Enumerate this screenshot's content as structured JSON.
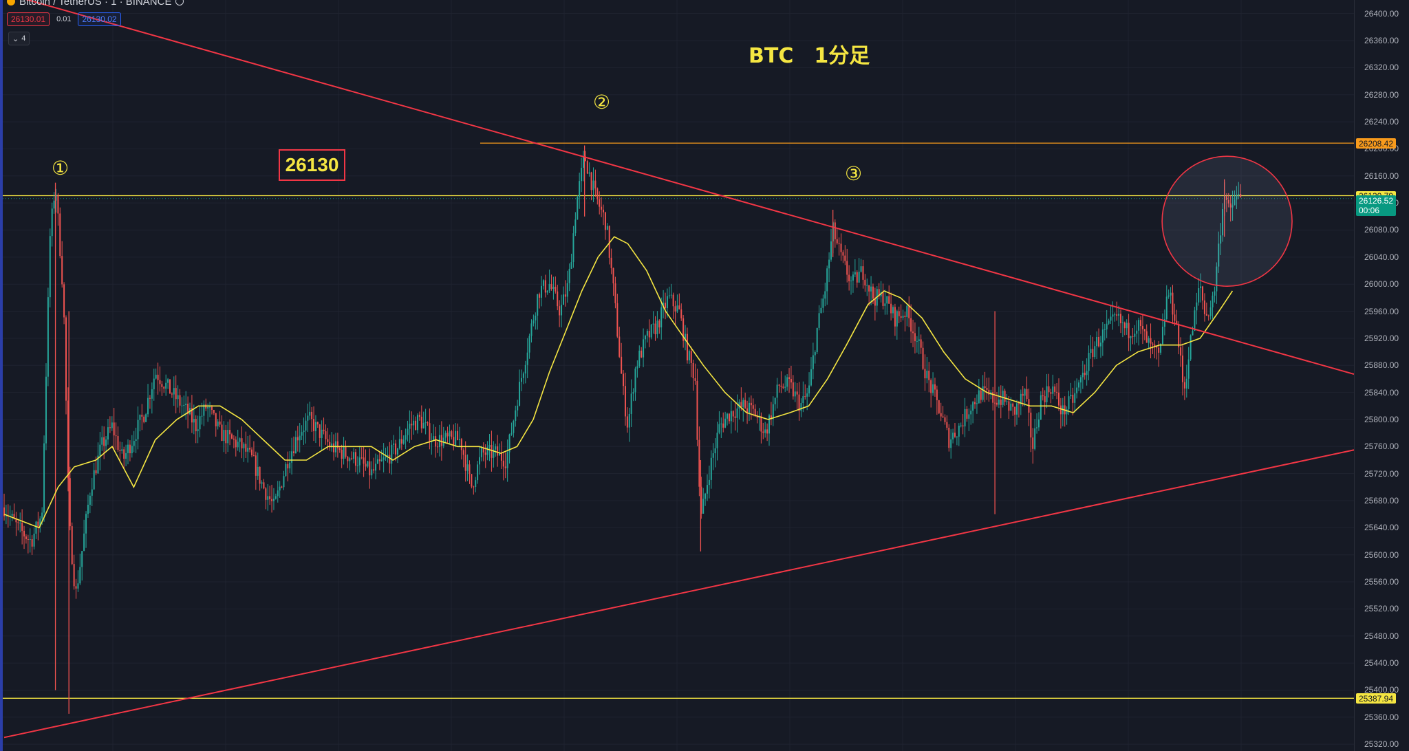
{
  "header": {
    "symbol": "Bitcoin / TetherUS · 1 · BINANCE"
  },
  "quote": {
    "sell": "26130.01",
    "spread": "0.01",
    "buy": "26130.02"
  },
  "indicators": {
    "count": "4"
  },
  "annotations": {
    "title": "BTC　1分足",
    "marker1": "①",
    "marker2": "②",
    "marker3": "③",
    "callout": "26130"
  },
  "colors": {
    "background": "#161a25",
    "up_candle": "#26a69a",
    "down_candle": "#ef5350",
    "trendline": "#f23645",
    "hline_yellow": "#f5e642",
    "hline_orange": "#f79a1c",
    "ma_line": "#f5e642"
  },
  "chart_data": {
    "type": "candlestick",
    "ylim": [
      25310,
      26420
    ],
    "price_axis_ticks": [
      "26400.00",
      "26360.00",
      "26320.00",
      "26280.00",
      "26240.00",
      "26200.00",
      "26160.00",
      "26120.00",
      "26080.00",
      "26040.00",
      "26000.00",
      "25960.00",
      "25920.00",
      "25880.00",
      "25840.00",
      "25800.00",
      "25760.00",
      "25720.00",
      "25680.00",
      "25640.00",
      "25600.00",
      "25560.00",
      "25520.00",
      "25480.00",
      "25440.00",
      "25400.00",
      "25360.00",
      "25320.00"
    ],
    "horizontal_levels": [
      {
        "price": 26208.42,
        "color": "orange",
        "label": "26208.42"
      },
      {
        "price": 26130.79,
        "color": "yellow",
        "label": "26130.79"
      },
      {
        "price": 25387.94,
        "color": "yellow",
        "label": "25387.94"
      }
    ],
    "current_price": {
      "price": 26126.52,
      "label": "26126.52",
      "countdown": "00:06"
    },
    "trendlines": [
      {
        "name": "descending",
        "from": [
          0,
          26430
        ],
        "to": [
          1,
          25867
        ]
      },
      {
        "name": "ascending",
        "from": [
          0,
          25330
        ],
        "to": [
          1,
          25755
        ]
      }
    ],
    "highlight_circle": {
      "center_x": 0.906,
      "center_price": 26093,
      "radius_frac": 0.048
    },
    "price_path": [
      [
        0.0,
        25670
      ],
      [
        0.01,
        25640
      ],
      [
        0.02,
        25620
      ],
      [
        0.028,
        25660
      ],
      [
        0.034,
        26070
      ],
      [
        0.038,
        26150
      ],
      [
        0.044,
        25980
      ],
      [
        0.048,
        25650
      ],
      [
        0.053,
        25540
      ],
      [
        0.058,
        25610
      ],
      [
        0.064,
        25700
      ],
      [
        0.072,
        25760
      ],
      [
        0.08,
        25790
      ],
      [
        0.088,
        25740
      ],
      [
        0.095,
        25770
      ],
      [
        0.104,
        25810
      ],
      [
        0.112,
        25870
      ],
      [
        0.12,
        25850
      ],
      [
        0.128,
        25830
      ],
      [
        0.136,
        25810
      ],
      [
        0.142,
        25790
      ],
      [
        0.15,
        25820
      ],
      [
        0.16,
        25780
      ],
      [
        0.168,
        25770
      ],
      [
        0.176,
        25760
      ],
      [
        0.184,
        25740
      ],
      [
        0.192,
        25700
      ],
      [
        0.2,
        25670
      ],
      [
        0.21,
        25740
      ],
      [
        0.218,
        25780
      ],
      [
        0.226,
        25800
      ],
      [
        0.234,
        25780
      ],
      [
        0.242,
        25760
      ],
      [
        0.252,
        25750
      ],
      [
        0.262,
        25740
      ],
      [
        0.272,
        25720
      ],
      [
        0.282,
        25740
      ],
      [
        0.292,
        25760
      ],
      [
        0.3,
        25790
      ],
      [
        0.308,
        25800
      ],
      [
        0.318,
        25770
      ],
      [
        0.328,
        25770
      ],
      [
        0.338,
        25770
      ],
      [
        0.346,
        25700
      ],
      [
        0.354,
        25750
      ],
      [
        0.364,
        25750
      ],
      [
        0.372,
        25740
      ],
      [
        0.38,
        25830
      ],
      [
        0.388,
        25910
      ],
      [
        0.396,
        25990
      ],
      [
        0.404,
        26000
      ],
      [
        0.412,
        25960
      ],
      [
        0.418,
        26000
      ],
      [
        0.424,
        26120
      ],
      [
        0.43,
        26190
      ],
      [
        0.438,
        26130
      ],
      [
        0.446,
        26090
      ],
      [
        0.452,
        25980
      ],
      [
        0.458,
        25850
      ],
      [
        0.462,
        25790
      ],
      [
        0.468,
        25880
      ],
      [
        0.476,
        25920
      ],
      [
        0.484,
        25940
      ],
      [
        0.492,
        25980
      ],
      [
        0.5,
        25960
      ],
      [
        0.506,
        25900
      ],
      [
        0.512,
        25860
      ],
      [
        0.516,
        25650
      ],
      [
        0.522,
        25720
      ],
      [
        0.53,
        25790
      ],
      [
        0.538,
        25810
      ],
      [
        0.548,
        25820
      ],
      [
        0.556,
        25810
      ],
      [
        0.564,
        25780
      ],
      [
        0.574,
        25850
      ],
      [
        0.582,
        25850
      ],
      [
        0.59,
        25820
      ],
      [
        0.596,
        25840
      ],
      [
        0.602,
        25930
      ],
      [
        0.608,
        25990
      ],
      [
        0.614,
        26080
      ],
      [
        0.62,
        26040
      ],
      [
        0.628,
        26000
      ],
      [
        0.636,
        26020
      ],
      [
        0.644,
        25980
      ],
      [
        0.652,
        25980
      ],
      [
        0.66,
        25950
      ],
      [
        0.668,
        25960
      ],
      [
        0.676,
        25920
      ],
      [
        0.684,
        25860
      ],
      [
        0.692,
        25820
      ],
      [
        0.7,
        25770
      ],
      [
        0.708,
        25790
      ],
      [
        0.716,
        25820
      ],
      [
        0.724,
        25840
      ],
      [
        0.732,
        25830
      ],
      [
        0.74,
        25830
      ],
      [
        0.748,
        25810
      ],
      [
        0.756,
        25840
      ],
      [
        0.762,
        25760
      ],
      [
        0.768,
        25830
      ],
      [
        0.776,
        25850
      ],
      [
        0.784,
        25810
      ],
      [
        0.792,
        25830
      ],
      [
        0.8,
        25870
      ],
      [
        0.808,
        25910
      ],
      [
        0.816,
        25930
      ],
      [
        0.824,
        25950
      ],
      [
        0.832,
        25930
      ],
      [
        0.84,
        25940
      ],
      [
        0.848,
        25910
      ],
      [
        0.856,
        25890
      ],
      [
        0.862,
        25990
      ],
      [
        0.868,
        25950
      ],
      [
        0.874,
        25840
      ],
      [
        0.88,
        25930
      ],
      [
        0.886,
        26000
      ],
      [
        0.89,
        25950
      ],
      [
        0.896,
        25980
      ],
      [
        0.9,
        26060
      ],
      [
        0.904,
        26140
      ],
      [
        0.908,
        26100
      ],
      [
        0.912,
        26130
      ],
      [
        0.916,
        26126
      ]
    ],
    "ma_path": [
      [
        0.0,
        25660
      ],
      [
        0.026,
        25640
      ],
      [
        0.04,
        25700
      ],
      [
        0.052,
        25730
      ],
      [
        0.068,
        25740
      ],
      [
        0.08,
        25760
      ],
      [
        0.096,
        25700
      ],
      [
        0.112,
        25770
      ],
      [
        0.128,
        25800
      ],
      [
        0.144,
        25820
      ],
      [
        0.16,
        25820
      ],
      [
        0.176,
        25800
      ],
      [
        0.192,
        25770
      ],
      [
        0.208,
        25740
      ],
      [
        0.224,
        25740
      ],
      [
        0.24,
        25760
      ],
      [
        0.256,
        25760
      ],
      [
        0.272,
        25760
      ],
      [
        0.288,
        25740
      ],
      [
        0.304,
        25760
      ],
      [
        0.32,
        25770
      ],
      [
        0.336,
        25760
      ],
      [
        0.352,
        25760
      ],
      [
        0.368,
        25750
      ],
      [
        0.38,
        25760
      ],
      [
        0.392,
        25800
      ],
      [
        0.404,
        25870
      ],
      [
        0.416,
        25930
      ],
      [
        0.428,
        25990
      ],
      [
        0.44,
        26040
      ],
      [
        0.452,
        26070
      ],
      [
        0.462,
        26060
      ],
      [
        0.476,
        26020
      ],
      [
        0.49,
        25960
      ],
      [
        0.504,
        25920
      ],
      [
        0.518,
        25880
      ],
      [
        0.534,
        25840
      ],
      [
        0.55,
        25810
      ],
      [
        0.566,
        25800
      ],
      [
        0.582,
        25810
      ],
      [
        0.596,
        25820
      ],
      [
        0.61,
        25860
      ],
      [
        0.624,
        25910
      ],
      [
        0.64,
        25970
      ],
      [
        0.652,
        25990
      ],
      [
        0.664,
        25980
      ],
      [
        0.68,
        25950
      ],
      [
        0.696,
        25900
      ],
      [
        0.712,
        25860
      ],
      [
        0.728,
        25840
      ],
      [
        0.744,
        25830
      ],
      [
        0.76,
        25820
      ],
      [
        0.776,
        25820
      ],
      [
        0.792,
        25810
      ],
      [
        0.808,
        25840
      ],
      [
        0.824,
        25880
      ],
      [
        0.84,
        25900
      ],
      [
        0.856,
        25910
      ],
      [
        0.872,
        25910
      ],
      [
        0.886,
        25920
      ],
      [
        0.9,
        25960
      ],
      [
        0.91,
        25990
      ]
    ]
  }
}
